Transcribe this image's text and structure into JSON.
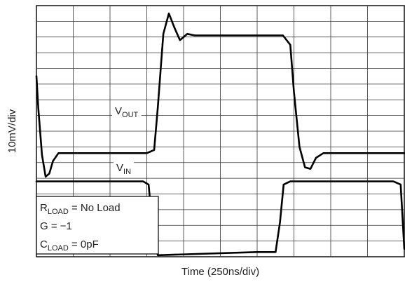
{
  "chart_data": {
    "type": "line",
    "xlabel": "Time (250ns/div)",
    "ylabel": "10mV/div",
    "grid": true,
    "x_divisions": 10,
    "y_divisions": 16,
    "xlim": [
      0,
      10
    ],
    "ylim": [
      0,
      16
    ],
    "series": [
      {
        "name": "V_OUT",
        "label_main": "V",
        "label_sub": "OUT",
        "x": [
          0,
          0.05,
          0.15,
          0.25,
          0.35,
          0.45,
          0.6,
          0.75,
          1.0,
          2.0,
          3.0,
          3.2,
          3.3,
          3.45,
          3.6,
          3.75,
          3.9,
          4.1,
          4.3,
          5.0,
          6.0,
          6.7,
          6.9,
          7.0,
          7.15,
          7.3,
          7.45,
          7.6,
          7.8,
          8.0,
          9.0,
          10.0
        ],
        "y": [
          11.5,
          9.5,
          6.5,
          5.1,
          5.3,
          6.1,
          6.6,
          6.6,
          6.6,
          6.6,
          6.6,
          6.8,
          9.5,
          14.2,
          15.5,
          14.6,
          13.8,
          14.2,
          14.1,
          14.1,
          14.1,
          14.1,
          13.5,
          10.5,
          7.0,
          5.7,
          5.6,
          6.3,
          6.6,
          6.6,
          6.6,
          6.6
        ]
      },
      {
        "name": "V_IN",
        "label_main": "V",
        "label_sub": "IN",
        "x": [
          0,
          2.9,
          3.05,
          3.15,
          3.3,
          6.0,
          6.5,
          6.62,
          6.72,
          6.9,
          9.7,
          9.9,
          10.0
        ],
        "y": [
          4.8,
          4.8,
          4.6,
          2.0,
          0.1,
          0.3,
          0.3,
          2.2,
          4.6,
          4.8,
          4.8,
          4.6,
          0.5
        ]
      }
    ],
    "annotation_box": [
      {
        "main": "R",
        "sub": "LOAD",
        "rest": " = No Load"
      },
      {
        "main": "G = −1",
        "sub": "",
        "rest": ""
      },
      {
        "main": "C",
        "sub": "LOAD",
        "rest": " = 0pF"
      }
    ]
  }
}
